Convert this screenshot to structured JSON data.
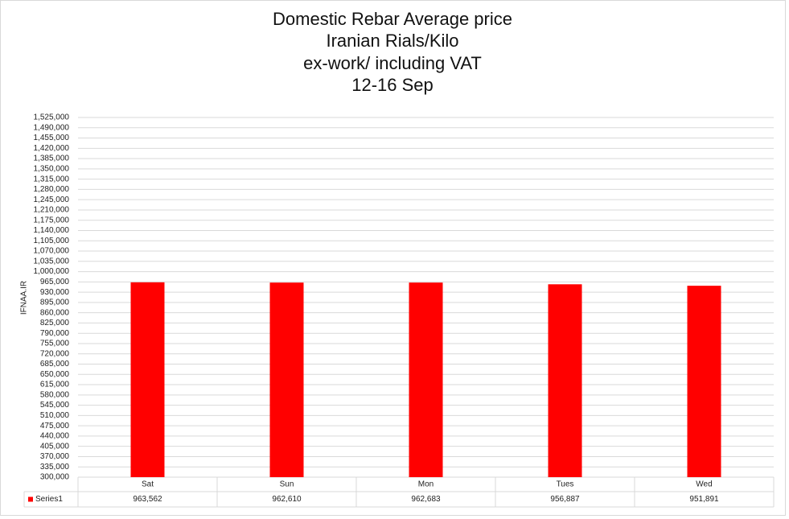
{
  "chart_data": {
    "type": "bar",
    "title": [
      "Domestic Rebar Average price",
      "Iranian Rials/Kilo",
      "ex-work/ including VAT",
      "12-16 Sep"
    ],
    "y_label": "IFNAA.IR",
    "categories": [
      "Sat",
      "Sun",
      "Mon",
      "Tues",
      "Wed"
    ],
    "series": [
      {
        "name": "Series1",
        "color": "#ff0000",
        "values": [
          963562,
          962610,
          962683,
          956887,
          951891
        ],
        "value_labels": [
          "963,562",
          "962,610",
          "962,683",
          "956,887",
          "951,891"
        ]
      }
    ],
    "ylim": [
      300000,
      1525000
    ],
    "yticks": [
      {
        "value": 300000,
        "label": "300,000"
      },
      {
        "value": 335000,
        "label": "335,000"
      },
      {
        "value": 370000,
        "label": "370,000"
      },
      {
        "value": 405000,
        "label": "405,000"
      },
      {
        "value": 440000,
        "label": "440,000"
      },
      {
        "value": 475000,
        "label": "475,000"
      },
      {
        "value": 510000,
        "label": "510,000"
      },
      {
        "value": 545000,
        "label": "545,000"
      },
      {
        "value": 580000,
        "label": "580,000"
      },
      {
        "value": 615000,
        "label": "615,000"
      },
      {
        "value": 650000,
        "label": "650,000"
      },
      {
        "value": 685000,
        "label": "685,000"
      },
      {
        "value": 720000,
        "label": "720,000"
      },
      {
        "value": 755000,
        "label": "755,000"
      },
      {
        "value": 790000,
        "label": "790,000"
      },
      {
        "value": 825000,
        "label": "825,000"
      },
      {
        "value": 860000,
        "label": "860,000"
      },
      {
        "value": 895000,
        "label": "895,000"
      },
      {
        "value": 930000,
        "label": "930,000"
      },
      {
        "value": 965000,
        "label": "965,000"
      },
      {
        "value": 1000000,
        "label": "1,000,000"
      },
      {
        "value": 1035000,
        "label": "1,035,000"
      },
      {
        "value": 1070000,
        "label": "1,070,000"
      },
      {
        "value": 1105000,
        "label": "1,105,000"
      },
      {
        "value": 1140000,
        "label": "1,140,000"
      },
      {
        "value": 1175000,
        "label": "1,175,000"
      },
      {
        "value": 1210000,
        "label": "1,210,000"
      },
      {
        "value": 1245000,
        "label": "1,245,000"
      },
      {
        "value": 1280000,
        "label": "1,280,000"
      },
      {
        "value": 1315000,
        "label": "1,315,000"
      },
      {
        "value": 1350000,
        "label": "1,350,000"
      },
      {
        "value": 1385000,
        "label": "1,385,000"
      },
      {
        "value": 1420000,
        "label": "1,420,000"
      },
      {
        "value": 1455000,
        "label": "1,455,000"
      },
      {
        "value": 1490000,
        "label": "1,490,000"
      },
      {
        "value": 1525000,
        "label": "1,525,000"
      }
    ],
    "grid": true
  }
}
